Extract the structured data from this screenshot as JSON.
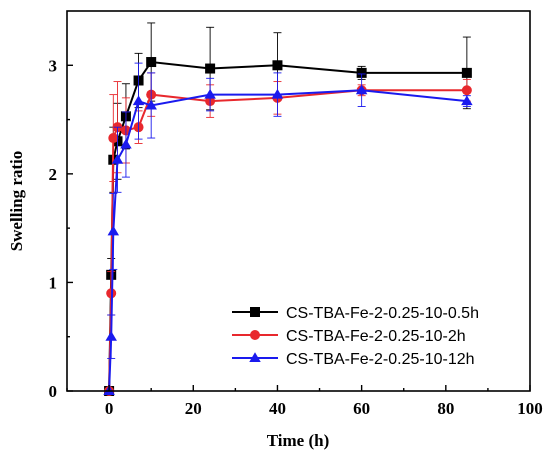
{
  "chart_data": {
    "type": "line",
    "xlabel": "Time (h)",
    "ylabel": "Swelling ratio",
    "xlim": [
      -10,
      100
    ],
    "ylim": [
      0,
      3.5
    ],
    "xticks": [
      0,
      20,
      40,
      60,
      80,
      100
    ],
    "yticks": [
      0,
      1,
      2,
      3
    ],
    "grid": false,
    "legend_position": "bottom-right",
    "series": [
      {
        "name": "CS-TBA-Fe-2-0.25-10-0.5h",
        "color": "#000000",
        "marker": "square",
        "x": [
          0,
          0.5,
          1,
          2,
          4,
          7,
          10,
          24,
          40,
          60,
          85
        ],
        "y": [
          0,
          1.07,
          2.13,
          2.3,
          2.53,
          2.86,
          3.03,
          2.97,
          3.0,
          2.93,
          2.93
        ],
        "err": [
          0,
          0.15,
          0.3,
          0.35,
          0.3,
          0.25,
          0.36,
          0.38,
          0.3,
          0.06,
          0.33
        ]
      },
      {
        "name": "CS-TBA-Fe-2-0.25-10-2h",
        "color": "#e8282d",
        "marker": "circle",
        "x": [
          0,
          0.5,
          1,
          2,
          4,
          7,
          10,
          24,
          40,
          60,
          85
        ],
        "y": [
          0,
          0.9,
          2.33,
          2.43,
          2.4,
          2.43,
          2.73,
          2.67,
          2.7,
          2.77,
          2.77
        ],
        "err": [
          0,
          0.2,
          0.4,
          0.42,
          0.3,
          0.15,
          0.2,
          0.15,
          0.15,
          0.05,
          0.1
        ]
      },
      {
        "name": "CS-TBA-Fe-2-0.25-10-12h",
        "color": "#1a1aee",
        "marker": "triangle",
        "x": [
          0,
          0.5,
          1,
          2,
          4,
          7,
          10,
          24,
          40,
          60,
          85
        ],
        "y": [
          0,
          0.5,
          1.47,
          2.13,
          2.27,
          2.67,
          2.63,
          2.73,
          2.73,
          2.77,
          2.67
        ],
        "err": [
          0,
          0.2,
          0.35,
          0.3,
          0.3,
          0.35,
          0.3,
          0.15,
          0.2,
          0.15,
          0.05
        ]
      }
    ]
  }
}
